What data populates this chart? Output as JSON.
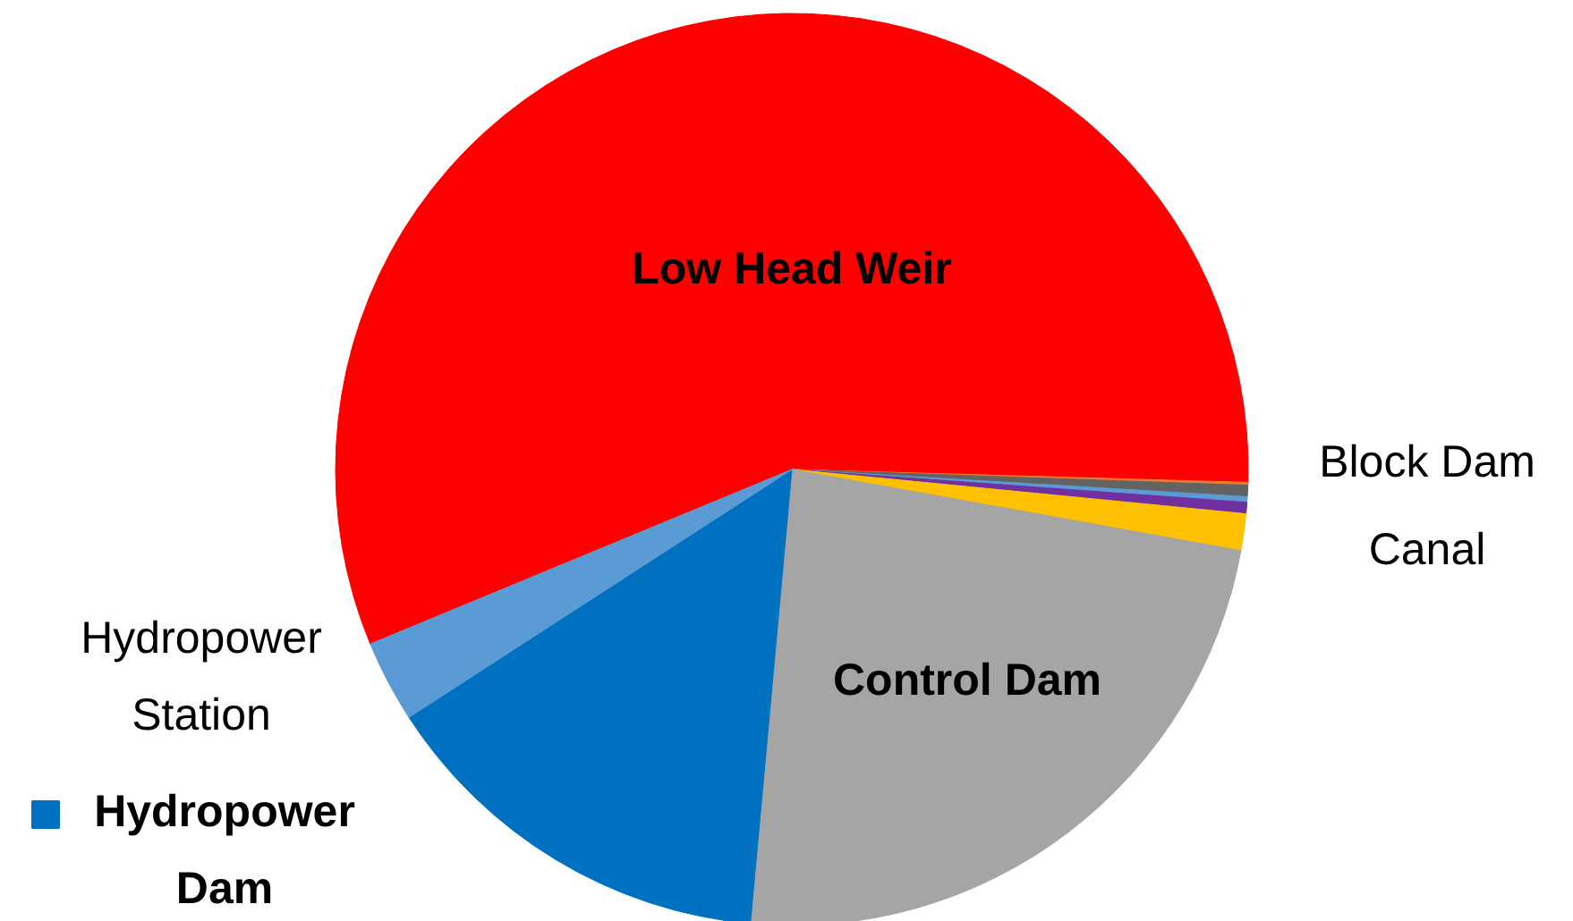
{
  "chart_data": {
    "type": "pie",
    "categories": [
      "Low Head Weir",
      null,
      "Block Dam",
      null,
      null,
      "Canal",
      "Control Dam",
      "Hydropower Dam",
      "Hydropower Station"
    ],
    "values": [
      56.7,
      0.1,
      0.4,
      0.2,
      0.4,
      1.3,
      23.6,
      14.4,
      2.9
    ],
    "colors": [
      "#ff0000",
      "#ed7d31",
      "#636363",
      "#5b9bd5",
      "#7030a0",
      "#ffc000",
      "#a5a5a5",
      "#0070c0",
      "#5b9bd5"
    ]
  }
}
